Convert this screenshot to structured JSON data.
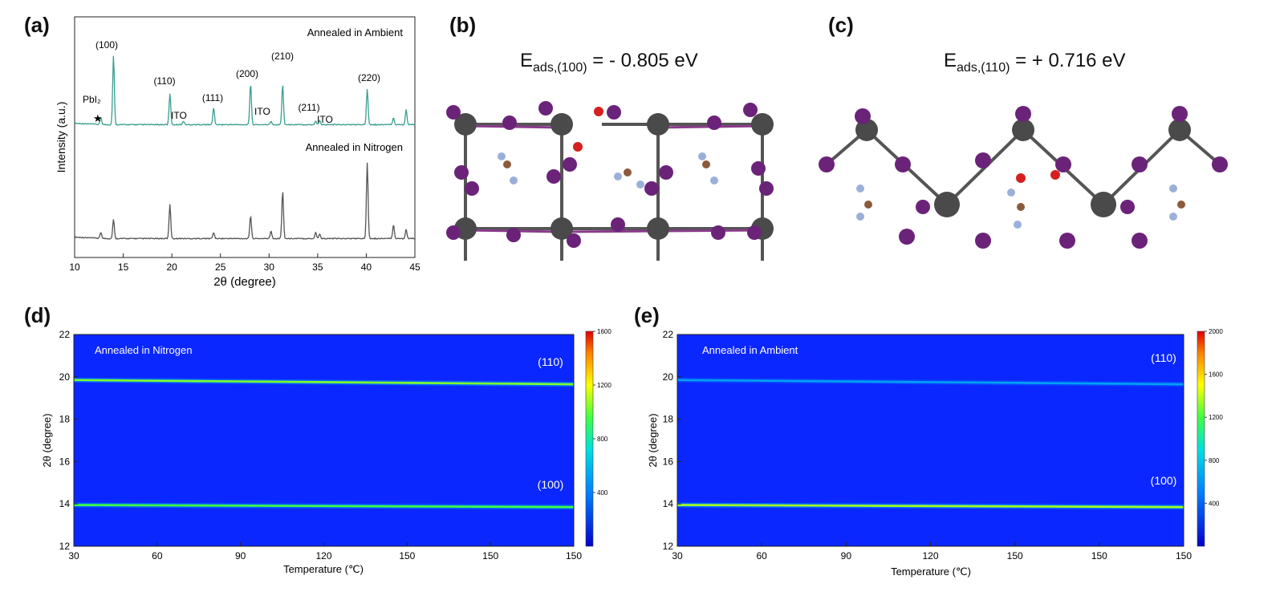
{
  "panels": {
    "a": "(a)",
    "b": "(b)",
    "c": "(c)",
    "d": "(d)",
    "e": "(e)"
  },
  "panel_b": {
    "energy_main": "E",
    "energy_sub": "ads,(100)",
    "energy_value": " = - 0.805 eV"
  },
  "panel_c": {
    "energy_main": "E",
    "energy_sub": "ads,(110)",
    "energy_value": " = + 0.716 eV"
  },
  "chart_data": [
    {
      "id": "a",
      "type": "line",
      "xlabel": "2θ (degree)",
      "ylabel": "Intensity (a.u.)",
      "xlim": [
        10,
        45
      ],
      "xticks": [
        "10",
        "15",
        "20",
        "25",
        "30",
        "35",
        "40",
        "45"
      ],
      "grid": false,
      "series": [
        {
          "name": "Annealed in Ambient",
          "color": "#3a9e90",
          "peaks": [
            [
              12.7,
              0.1
            ],
            [
              14.0,
              1.0
            ],
            [
              19.8,
              0.45
            ],
            [
              21.2,
              0.05
            ],
            [
              24.3,
              0.25
            ],
            [
              28.1,
              0.6
            ],
            [
              30.2,
              0.05
            ],
            [
              31.4,
              0.58
            ],
            [
              34.8,
              0.05
            ],
            [
              35.2,
              0.06
            ],
            [
              40.1,
              0.52
            ],
            [
              42.8,
              0.1
            ],
            [
              44.1,
              0.22
            ]
          ]
        },
        {
          "name": "Annealed in Nitrogen",
          "color": "#555555",
          "peaks": [
            [
              12.7,
              0.08
            ],
            [
              14.0,
              0.25
            ],
            [
              19.8,
              0.45
            ],
            [
              24.3,
              0.08
            ],
            [
              28.1,
              0.3
            ],
            [
              30.2,
              0.1
            ],
            [
              31.4,
              0.62
            ],
            [
              34.8,
              0.08
            ],
            [
              35.2,
              0.06
            ],
            [
              40.1,
              1.0
            ],
            [
              42.8,
              0.18
            ],
            [
              44.1,
              0.12
            ]
          ]
        }
      ],
      "annotations": {
        "pbi2": "PbI₂",
        "star": "★",
        "p100": "(100)",
        "p110": "(110)",
        "ito1": "ITO",
        "p111": "(111)",
        "p200": "(200)",
        "ito2": "ITO",
        "p210": "(210)",
        "p211": "(211)",
        "ito3": "ITO",
        "p220": "(220)"
      }
    },
    {
      "id": "d",
      "type": "heatmap",
      "title": "Annealed in Nitrogen",
      "xlabel": "Temperature (℃)",
      "ylabel": "2θ (degree)",
      "xticks": [
        "30",
        "60",
        "90",
        "120",
        "150",
        "150",
        "150"
      ],
      "yticks": [
        "12",
        "14",
        "16",
        "18",
        "20",
        "22"
      ],
      "ylim": [
        12,
        22
      ],
      "colorbar": {
        "ticks": [
          "400",
          "800",
          "1200",
          "1600"
        ],
        "min": 0,
        "max": 1600
      },
      "bands": [
        {
          "label": "(110)",
          "y_start": 19.85,
          "y_end": 19.65,
          "intensity": 0.65
        },
        {
          "label": "(100)",
          "y_start": 13.95,
          "y_end": 13.85,
          "intensity": 0.6
        }
      ]
    },
    {
      "id": "e",
      "type": "heatmap",
      "title": "Annealed in Ambient",
      "xlabel": "Temperature (℃)",
      "ylabel": "2θ (degree)",
      "xticks": [
        "30",
        "60",
        "90",
        "120",
        "150",
        "150",
        "150"
      ],
      "yticks": [
        "12",
        "14",
        "16",
        "18",
        "20",
        "22"
      ],
      "ylim": [
        12,
        22
      ],
      "colorbar": {
        "ticks": [
          "400",
          "800",
          "1200",
          "1600",
          "2000"
        ],
        "min": 0,
        "max": 2000
      },
      "bands": [
        {
          "label": "(110)",
          "y_start": 19.85,
          "y_end": 19.65,
          "intensity": 0.32
        },
        {
          "label": "(100)",
          "y_start": 13.95,
          "y_end": 13.85,
          "intensity": 0.68
        }
      ]
    }
  ]
}
